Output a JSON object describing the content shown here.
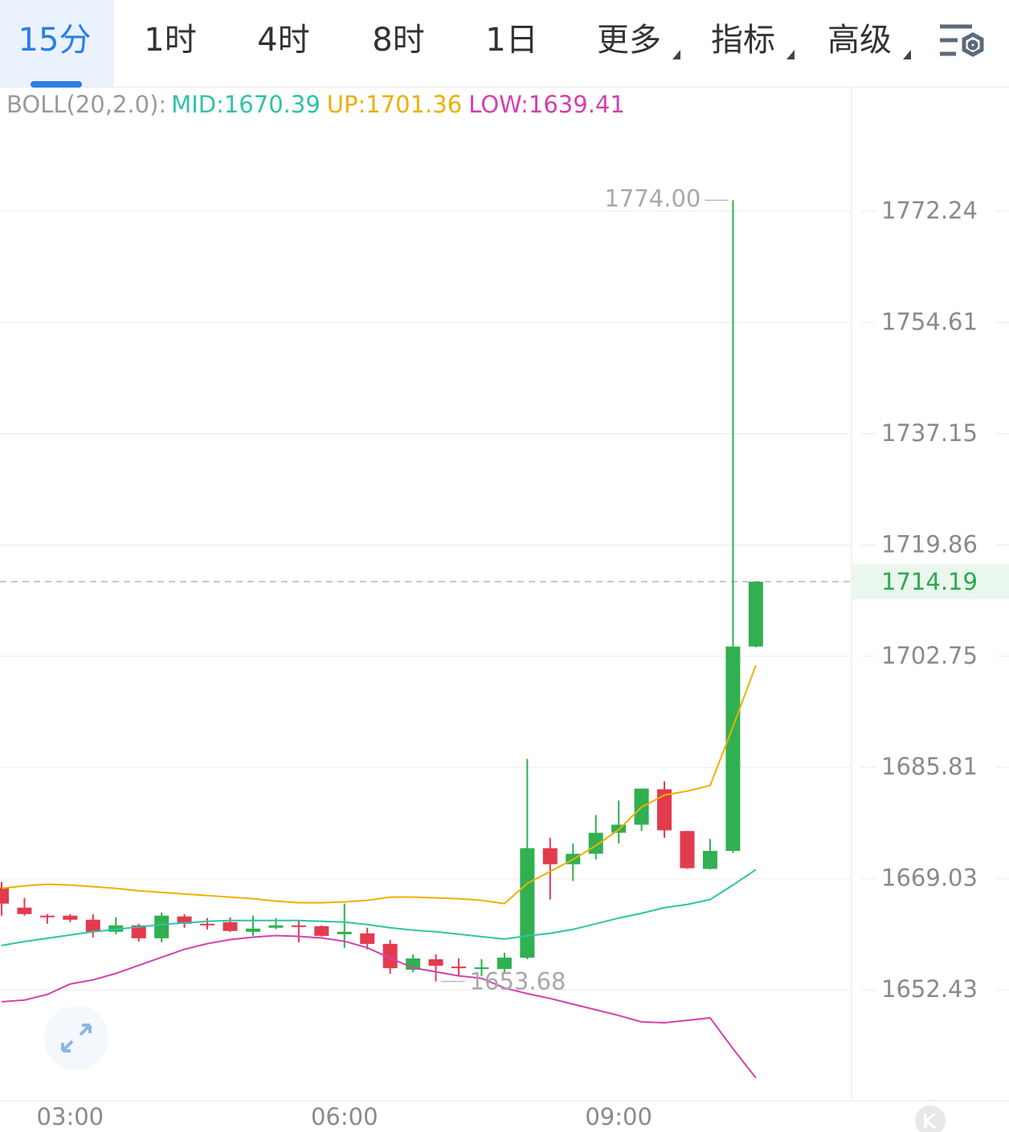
{
  "tabs": [
    {
      "label": "15分",
      "selected": true
    },
    {
      "label": "1时"
    },
    {
      "label": "4时"
    },
    {
      "label": "8时"
    },
    {
      "label": "1日"
    },
    {
      "label": "更多",
      "dropdown": true
    },
    {
      "label": "指标",
      "dropdown": true
    },
    {
      "label": "高级",
      "dropdown": true
    }
  ],
  "chart_data": {
    "type": "candlestick",
    "log_scale": true,
    "grid": true,
    "legend": {
      "name": "BOLL(20,2.0):",
      "items": [
        {
          "text": "MID:1670.39",
          "color": "#2ec4a5"
        },
        {
          "text": "UP:1701.36",
          "color": "#eeb000"
        },
        {
          "text": "LOW:1639.41",
          "color": "#d63fae"
        }
      ]
    },
    "categories": [
      null,
      null,
      null,
      "03:00",
      null,
      null,
      null,
      null,
      null,
      null,
      null,
      null,
      null,
      null,
      null,
      "06:00",
      null,
      null,
      null,
      null,
      null,
      null,
      null,
      null,
      null,
      null,
      null,
      "09:00",
      null,
      null,
      null,
      null,
      null,
      null
    ],
    "up_color": "#30b050",
    "down_color": "#e23b4e",
    "open": [
      1667.7,
      1664.69,
      1663.49,
      1663.49,
      1662.88,
      1661.08,
      1662.04,
      1660.11,
      1663.37,
      1662.28,
      1662.52,
      1661.08,
      1661.68,
      1662.04,
      1661.92,
      1660.72,
      1660.84,
      1659.27,
      1655.41,
      1656.98,
      1655.89,
      1655.65,
      1655.53,
      1657.22,
      1673.61,
      1671.2,
      1672.77,
      1675.93,
      1677.15,
      1682.5,
      1676.2,
      1670.5,
      1673.2,
      1704.23
    ],
    "high": [
      1668.55,
      1666.14,
      1663.73,
      1663.73,
      1663.73,
      1663.25,
      1662.28,
      1663.97,
      1663.73,
      1663.13,
      1663.25,
      1663.49,
      1663.13,
      1662.88,
      1662.04,
      1665.29,
      1661.68,
      1659.87,
      1657.7,
      1657.7,
      1657.1,
      1656.98,
      1657.94,
      1687.09,
      1675.18,
      1674.33,
      1678.6,
      1680.8,
      1682.6,
      1683.7,
      1676.2,
      1675.0,
      1774.0,
      1714.19
    ],
    "low": [
      1663.49,
      1663.49,
      1662.28,
      1662.52,
      1660.23,
      1660.72,
      1659.63,
      1659.51,
      1661.68,
      1661.44,
      1661.08,
      1660.47,
      1661.44,
      1659.51,
      1660.35,
      1658.67,
      1658.43,
      1654.81,
      1655.05,
      1653.68,
      1654.45,
      1654.45,
      1655.05,
      1656.98,
      1665.9,
      1668.67,
      1671.93,
      1674.33,
      1676.2,
      1675.18,
      1670.5,
      1670.4,
      1672.9,
      1704.1
    ],
    "close": [
      1665.29,
      1663.73,
      1663.37,
      1662.88,
      1661.08,
      1662.04,
      1660.11,
      1663.49,
      1662.28,
      1662.16,
      1661.2,
      1661.56,
      1662.04,
      1661.8,
      1660.47,
      1661.08,
      1659.27,
      1655.65,
      1657.1,
      1656.01,
      1655.65,
      1655.77,
      1657.22,
      1673.61,
      1671.2,
      1672.77,
      1675.93,
      1677.15,
      1682.6,
      1676.3,
      1670.6,
      1673.2,
      1704.23,
      1714.19
    ],
    "lines": [
      {
        "name": "UP",
        "color": "#eeb000",
        "values": [
          1667.58,
          1667.95,
          1668.19,
          1668.07,
          1667.83,
          1667.58,
          1667.22,
          1666.98,
          1666.74,
          1666.5,
          1666.26,
          1666.02,
          1665.66,
          1665.42,
          1665.42,
          1665.54,
          1665.78,
          1666.26,
          1666.26,
          1666.14,
          1666.02,
          1665.78,
          1665.29,
          1668.31,
          1670.11,
          1671.92,
          1673.99,
          1676.41,
          1679.8,
          1681.62,
          1682.22,
          1683.07,
          1691.97,
          1701.36
        ]
      },
      {
        "name": "MID",
        "color": "#2ec4a5",
        "values": [
          1659.03,
          1659.63,
          1660.11,
          1660.6,
          1661.08,
          1661.44,
          1661.8,
          1662.16,
          1662.4,
          1662.64,
          1662.76,
          1662.76,
          1662.76,
          1662.76,
          1662.64,
          1662.52,
          1662.16,
          1661.68,
          1661.32,
          1661.08,
          1660.72,
          1660.35,
          1659.99,
          1660.47,
          1660.84,
          1661.44,
          1662.28,
          1663.13,
          1663.85,
          1664.69,
          1665.17,
          1665.9,
          1668.07,
          1670.39
        ]
      },
      {
        "name": "LOW",
        "color": "#d63fae",
        "values": [
          1650.67,
          1650.91,
          1651.75,
          1653.31,
          1653.91,
          1654.87,
          1656.07,
          1657.27,
          1658.47,
          1659.31,
          1659.91,
          1660.27,
          1660.51,
          1660.39,
          1660.15,
          1659.67,
          1658.71,
          1657.15,
          1655.71,
          1655.11,
          1654.51,
          1654.15,
          1652.71,
          1651.87,
          1651.15,
          1650.31,
          1649.47,
          1648.63,
          1647.67,
          1647.55,
          1647.91,
          1648.27,
          1643.71,
          1639.41
        ]
      }
    ],
    "ylim": [
      1636.05,
      1791.93
    ],
    "yticks": [
      1652.43,
      1669.03,
      1685.81,
      1702.75,
      1719.86,
      1737.15,
      1754.61,
      1772.24
    ],
    "max_label": "1774.00",
    "min_label": "1653.68",
    "last_label": "1714.19"
  }
}
